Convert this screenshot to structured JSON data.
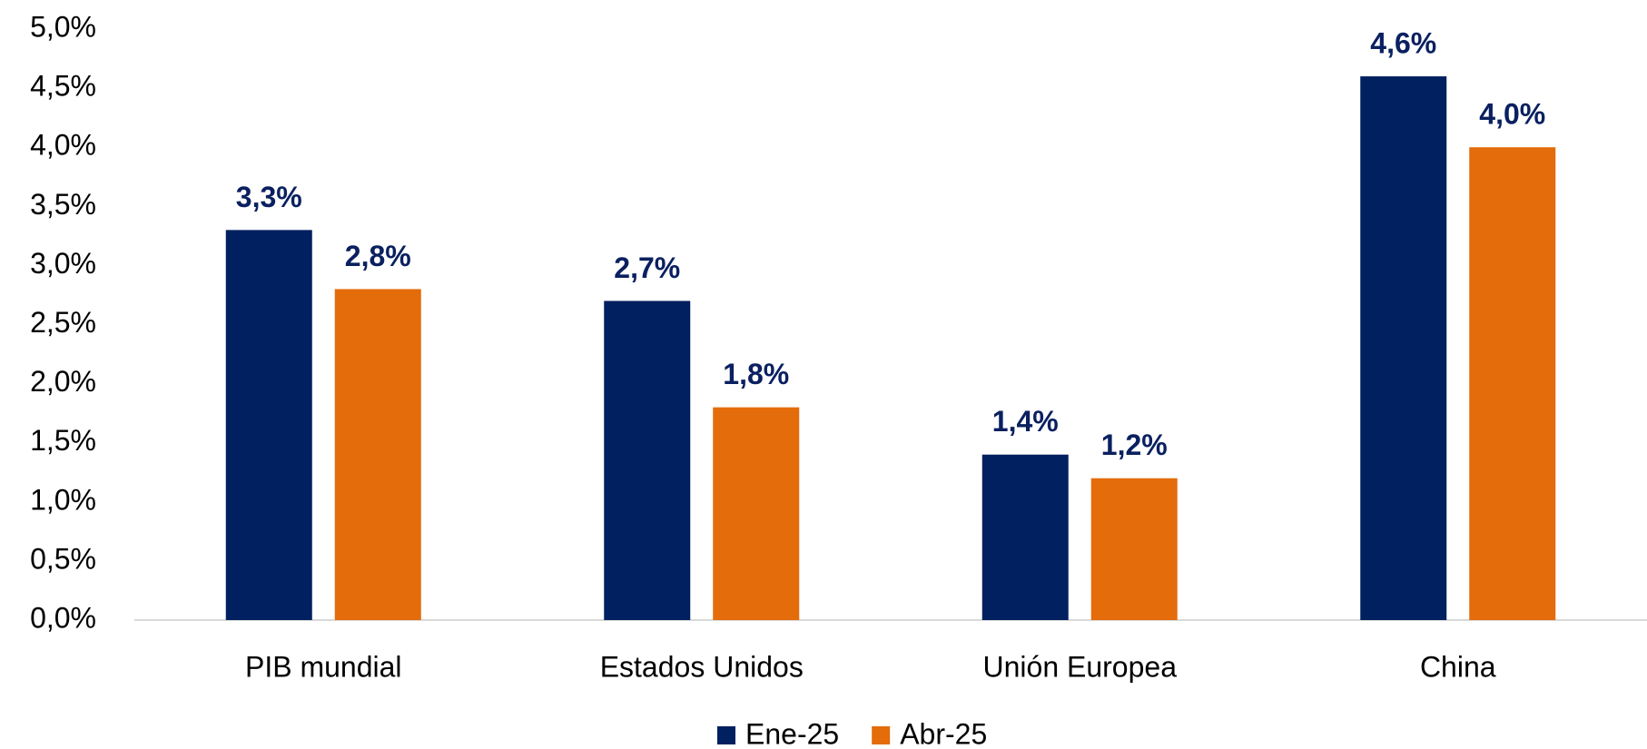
{
  "chart_data": {
    "type": "bar",
    "categories": [
      "PIB mundial",
      "Estados Unidos",
      "Unión Europea",
      "China"
    ],
    "series": [
      {
        "name": "Ene-25",
        "color": "#002060",
        "values": [
          3.3,
          2.7,
          1.4,
          4.6
        ],
        "value_labels": [
          "3,3%",
          "2,7%",
          "1,4%",
          "4,6%"
        ]
      },
      {
        "name": "Abr-25",
        "color": "#e46c0a",
        "values": [
          2.8,
          1.8,
          1.2,
          4.0
        ],
        "value_labels": [
          "2,8%",
          "1,8%",
          "1,2%",
          "4,0%"
        ]
      }
    ],
    "ylim": [
      0,
      5
    ],
    "yticks": [
      {
        "value": 0,
        "label": "0,0%"
      },
      {
        "value": 0.5,
        "label": "0,5%"
      },
      {
        "value": 1,
        "label": "1,0%"
      },
      {
        "value": 1.5,
        "label": "1,5%"
      },
      {
        "value": 2,
        "label": "2,0%"
      },
      {
        "value": 2.5,
        "label": "2,5%"
      },
      {
        "value": 3,
        "label": "3,0%"
      },
      {
        "value": 3.5,
        "label": "3,5%"
      },
      {
        "value": 4,
        "label": "4,0%"
      },
      {
        "value": 4.5,
        "label": "4,5%"
      },
      {
        "value": 5,
        "label": "5,0%"
      }
    ],
    "grid": false,
    "legend": "bottom"
  }
}
